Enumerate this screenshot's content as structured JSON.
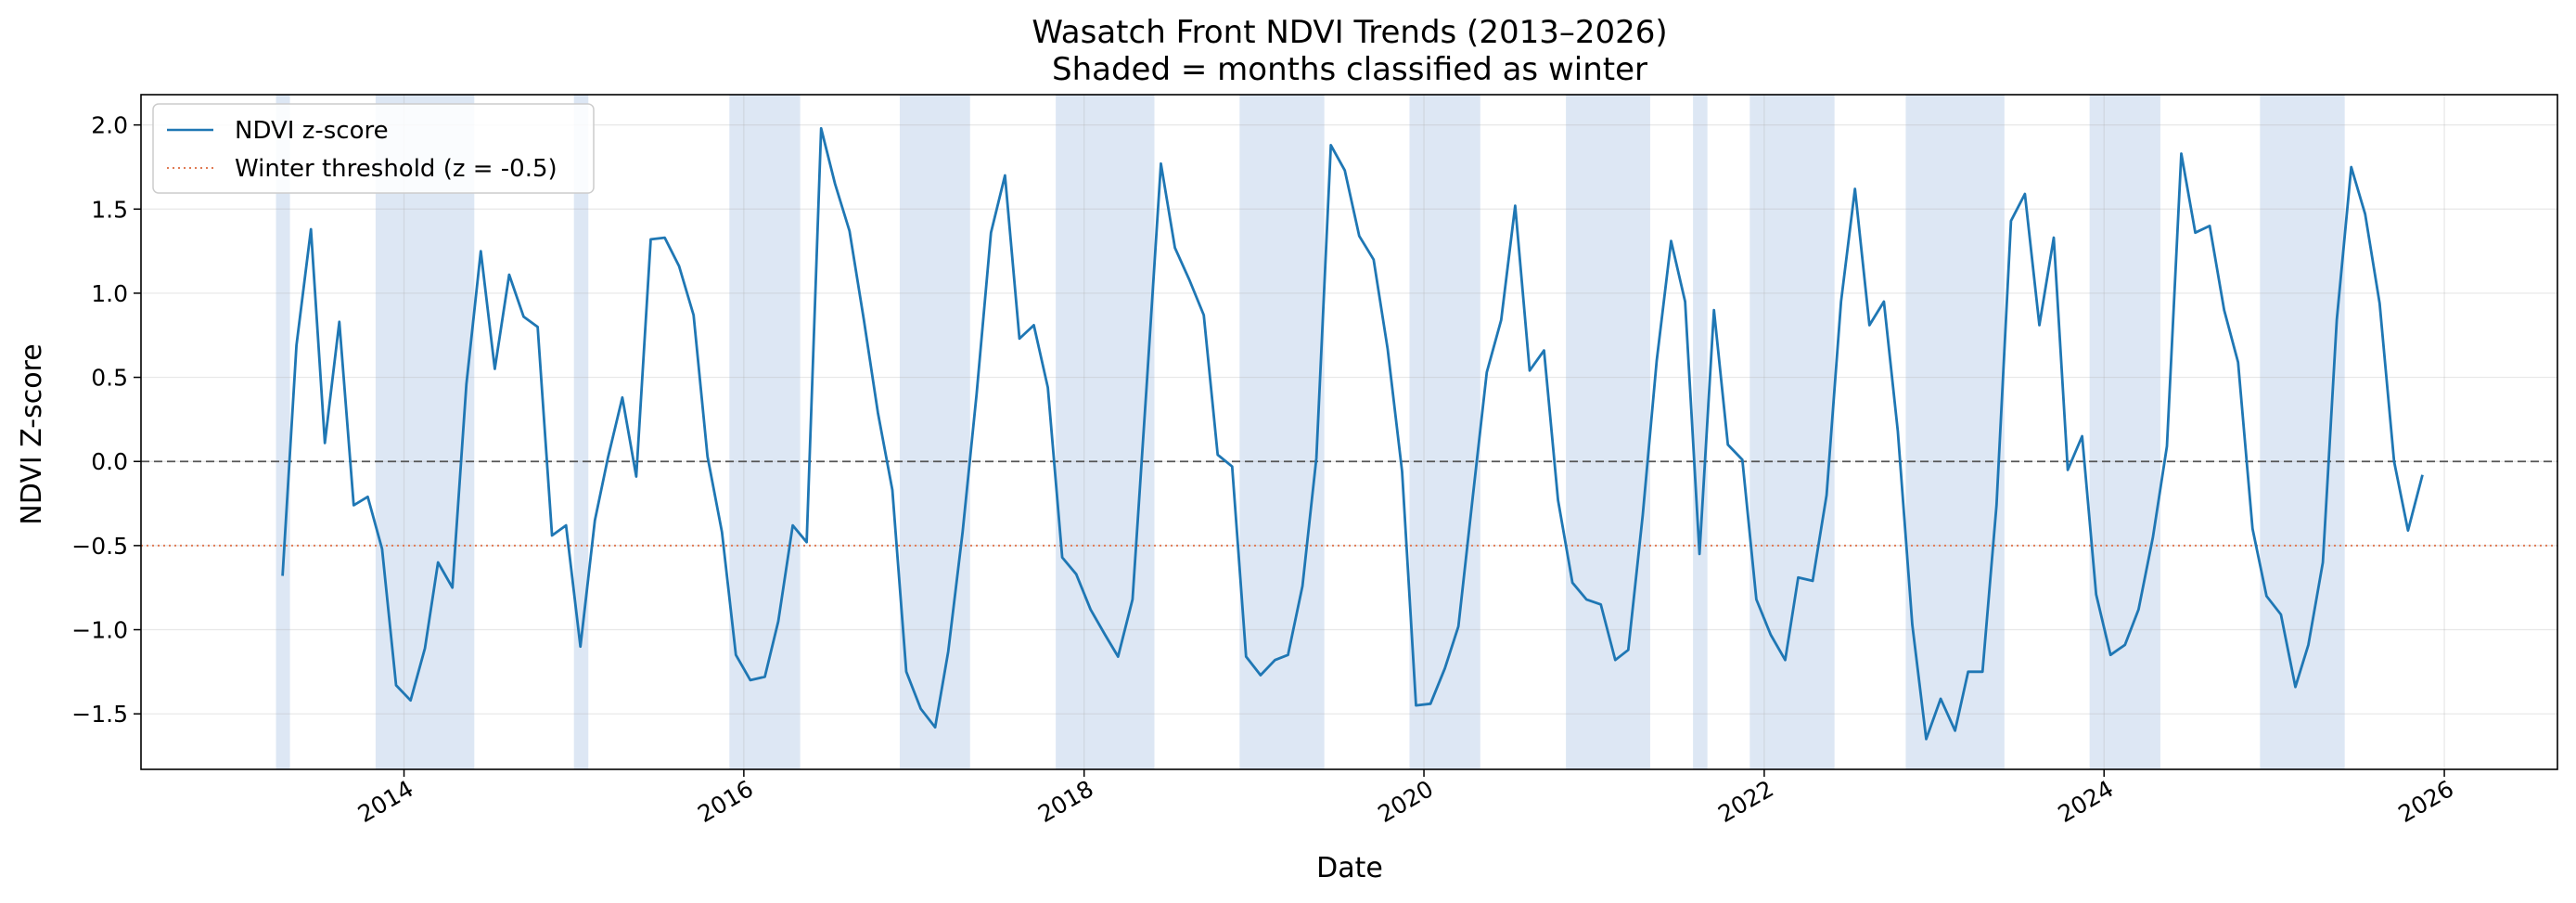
{
  "chart_data": {
    "type": "line",
    "title": "Wasatch Front NDVI Trends (2013–2026)",
    "subtitle": "Shaded = months classified as winter",
    "xlabel": "Date",
    "ylabel": "NDVI Z-score",
    "xlim": [
      "2012-06-15",
      "2026-09-01"
    ],
    "ylim": [
      -1.83,
      2.18
    ],
    "x_ticks": [
      "2014",
      "2016",
      "2018",
      "2020",
      "2022",
      "2024",
      "2026"
    ],
    "y_ticks": [
      "2.0",
      "1.5",
      "1.0",
      "0.5",
      "0.0",
      "−0.5",
      "−1.0",
      "−1.5"
    ],
    "grid": true,
    "legend_position": "top-left",
    "reference_lines": [
      {
        "y": 0.0,
        "style": "dashed",
        "color": "#555555"
      },
      {
        "y": -0.5,
        "style": "dotted",
        "color": "#e07b55",
        "label": "Winter threshold (z = -0.5)"
      }
    ],
    "winter_shading_color": "#aec6e4",
    "winter_periods": [
      [
        "2013-04-01",
        "2013-05-01"
      ],
      [
        "2013-11-01",
        "2014-06-01"
      ],
      [
        "2015-01-01",
        "2015-02-01"
      ],
      [
        "2015-12-01",
        "2016-05-01"
      ],
      [
        "2016-12-01",
        "2017-05-01"
      ],
      [
        "2017-11-01",
        "2018-06-01"
      ],
      [
        "2018-12-01",
        "2019-06-01"
      ],
      [
        "2019-12-01",
        "2020-05-01"
      ],
      [
        "2020-11-01",
        "2021-05-01"
      ],
      [
        "2021-08-01",
        "2021-09-01"
      ],
      [
        "2021-12-01",
        "2022-06-01"
      ],
      [
        "2022-11-01",
        "2023-06-01"
      ],
      [
        "2023-12-01",
        "2024-05-01"
      ],
      [
        "2024-12-01",
        "2025-06-01"
      ]
    ],
    "series": [
      {
        "name": "NDVI z-score",
        "color": "#1f77b4",
        "x": [
          "2013-04",
          "2013-05",
          "2013-06",
          "2013-07",
          "2013-08",
          "2013-09",
          "2013-10",
          "2013-11",
          "2013-12",
          "2014-01",
          "2014-02",
          "2014-03",
          "2014-04",
          "2014-05",
          "2014-06",
          "2014-07",
          "2014-08",
          "2014-09",
          "2014-10",
          "2014-11",
          "2014-12",
          "2015-01",
          "2015-02",
          "2015-03",
          "2015-04",
          "2015-05",
          "2015-06",
          "2015-07",
          "2015-08",
          "2015-09",
          "2015-10",
          "2015-11",
          "2015-12",
          "2016-01",
          "2016-02",
          "2016-03",
          "2016-04",
          "2016-05",
          "2016-06",
          "2016-07",
          "2016-08",
          "2016-09",
          "2016-10",
          "2016-11",
          "2016-12",
          "2017-01",
          "2017-02",
          "2017-03",
          "2017-04",
          "2017-05",
          "2017-06",
          "2017-07",
          "2017-08",
          "2017-09",
          "2017-10",
          "2017-11",
          "2017-12",
          "2018-01",
          "2018-02",
          "2018-03",
          "2018-04",
          "2018-05",
          "2018-06",
          "2018-07",
          "2018-08",
          "2018-09",
          "2018-10",
          "2018-11",
          "2018-12",
          "2019-01",
          "2019-02",
          "2019-03",
          "2019-04",
          "2019-05",
          "2019-06",
          "2019-07",
          "2019-08",
          "2019-09",
          "2019-10",
          "2019-11",
          "2019-12",
          "2020-01",
          "2020-02",
          "2020-03",
          "2020-04",
          "2020-05",
          "2020-06",
          "2020-07",
          "2020-08",
          "2020-09",
          "2020-10",
          "2020-11",
          "2020-12",
          "2021-01",
          "2021-02",
          "2021-03",
          "2021-04",
          "2021-05",
          "2021-06",
          "2021-07",
          "2021-08",
          "2021-09",
          "2021-10",
          "2021-11",
          "2021-12",
          "2022-01",
          "2022-02",
          "2022-03",
          "2022-04",
          "2022-05",
          "2022-06",
          "2022-07",
          "2022-08",
          "2022-09",
          "2022-10",
          "2022-11",
          "2022-12",
          "2023-01",
          "2023-02",
          "2023-03",
          "2023-04",
          "2023-05",
          "2023-06",
          "2023-07",
          "2023-08",
          "2023-09",
          "2023-10",
          "2023-11",
          "2023-12",
          "2024-01",
          "2024-02",
          "2024-03",
          "2024-04",
          "2024-05",
          "2024-06",
          "2024-07",
          "2024-08",
          "2024-09",
          "2024-10",
          "2024-11",
          "2024-12",
          "2025-01",
          "2025-02",
          "2025-03",
          "2025-04",
          "2025-05",
          "2025-06",
          "2025-07",
          "2025-08",
          "2025-09",
          "2025-10",
          "2025-11"
        ],
        "y": [
          -0.68,
          0.69,
          1.38,
          0.11,
          0.83,
          -0.26,
          -0.21,
          -0.52,
          -1.33,
          -1.42,
          -1.11,
          -0.6,
          -0.75,
          0.46,
          1.25,
          0.55,
          1.11,
          0.86,
          0.8,
          -0.44,
          -0.38,
          -1.1,
          -0.35,
          0.02,
          0.38,
          -0.09,
          1.32,
          1.33,
          1.16,
          0.87,
          0.03,
          -0.42,
          -1.15,
          -1.3,
          -1.28,
          -0.95,
          -0.38,
          -0.48,
          1.98,
          1.65,
          1.37,
          0.84,
          0.29,
          -0.17,
          -1.25,
          -1.47,
          -1.58,
          -1.13,
          -0.42,
          0.4,
          1.36,
          1.7,
          0.73,
          0.81,
          0.44,
          -0.57,
          -0.67,
          -0.88,
          -1.03,
          -1.16,
          -0.82,
          0.44,
          1.77,
          1.27,
          1.08,
          0.87,
          0.04,
          -0.03,
          -1.16,
          -1.27,
          -1.18,
          -1.15,
          -0.74,
          0.02,
          1.88,
          1.73,
          1.34,
          1.2,
          0.67,
          -0.06,
          -1.45,
          -1.44,
          -1.23,
          -0.98,
          -0.21,
          0.53,
          0.84,
          1.52,
          0.54,
          0.66,
          -0.23,
          -0.72,
          -0.82,
          -0.85,
          -1.18,
          -1.12,
          -0.32,
          0.6,
          1.31,
          0.95,
          -0.55,
          0.9,
          0.1,
          0.01,
          -0.82,
          -1.03,
          -1.18,
          -0.69,
          -0.71,
          -0.2,
          0.95,
          1.62,
          0.81,
          0.95,
          0.18,
          -0.97,
          -1.65,
          -1.41,
          -1.6,
          -1.25,
          -1.25,
          -0.26,
          1.43,
          1.59,
          0.81,
          1.33,
          -0.05,
          0.15,
          -0.79,
          -1.15,
          -1.09,
          -0.88,
          -0.45,
          0.09,
          1.83,
          1.36,
          1.4,
          0.9,
          0.59,
          -0.4,
          -0.8,
          -0.91,
          -1.34,
          -1.09,
          -0.6,
          0.84,
          1.75,
          1.47,
          0.94,
          0.0,
          -0.41,
          -0.08
        ]
      }
    ]
  }
}
